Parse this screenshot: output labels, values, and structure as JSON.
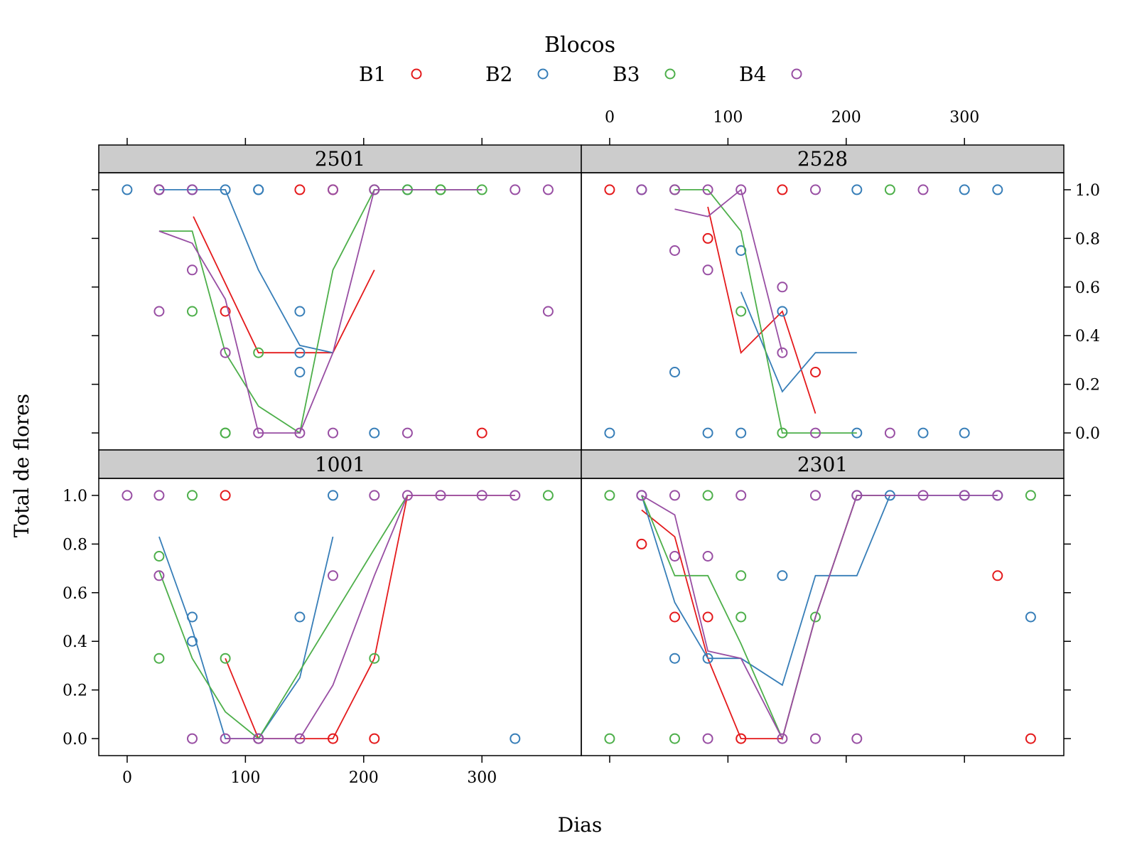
{
  "chart_data": {
    "type": "scatter",
    "legend": {
      "title": "Blocos",
      "placement": "top",
      "entries": [
        "B1",
        "B2",
        "B3",
        "B4"
      ]
    },
    "xlabel": "Dias",
    "ylabel": "Total de flores",
    "xlim": [
      -24,
      384
    ],
    "ylim": [
      -0.07,
      1.07
    ],
    "xticks": [
      0,
      100,
      200,
      300
    ],
    "yticks": [
      0.0,
      0.2,
      0.4,
      0.6,
      0.8,
      1.0
    ],
    "xtick_labels": [
      "0",
      "100",
      "200",
      "300"
    ],
    "ytick_labels": [
      "0.0",
      "0.2",
      "0.4",
      "0.6",
      "0.8",
      "1.0"
    ],
    "grid": false,
    "colors": {
      "B1": "#E41A1C",
      "B2": "#377EB8",
      "B3": "#4DAF4A",
      "B4": "#984EA3"
    },
    "panels": [
      {
        "strip": "2501",
        "points": {
          "B1": [
            [
              27,
              1
            ],
            [
              83,
              0.5
            ],
            [
              146,
              1
            ],
            [
              174,
              1
            ],
            [
              300,
              0
            ]
          ],
          "B2": [
            [
              0,
              1
            ],
            [
              27,
              1
            ],
            [
              55,
              1
            ],
            [
              83,
              1
            ],
            [
              111,
              1
            ],
            [
              111,
              1
            ],
            [
              146,
              0.5
            ],
            [
              146,
              0.33
            ],
            [
              146,
              0.25
            ],
            [
              209,
              0
            ],
            [
              237,
              1
            ]
          ],
          "B3": [
            [
              55,
              0.5
            ],
            [
              83,
              0
            ],
            [
              83,
              0
            ],
            [
              111,
              0.33
            ],
            [
              209,
              1
            ],
            [
              237,
              1
            ],
            [
              265,
              1
            ],
            [
              265,
              1
            ],
            [
              300,
              1
            ]
          ],
          "B4": [
            [
              27,
              1
            ],
            [
              27,
              0.5
            ],
            [
              55,
              1
            ],
            [
              55,
              0.67
            ],
            [
              83,
              0.33
            ],
            [
              111,
              0
            ],
            [
              146,
              0
            ],
            [
              174,
              1
            ],
            [
              174,
              0
            ],
            [
              209,
              1
            ],
            [
              237,
              0
            ],
            [
              328,
              1
            ],
            [
              356,
              1
            ],
            [
              356,
              0.5
            ]
          ]
        },
        "lines": {
          "B1": [
            [
              56,
              0.89
            ],
            [
              111,
              0.33
            ],
            [
              174,
              0.33
            ],
            [
              209,
              0.67
            ]
          ],
          "B2": [
            [
              27,
              1
            ],
            [
              83,
              1
            ],
            [
              111,
              0.67
            ],
            [
              146,
              0.36
            ],
            [
              174,
              0.33
            ]
          ],
          "B3": [
            [
              27,
              0.83
            ],
            [
              55,
              0.83
            ],
            [
              83,
              0.33
            ],
            [
              111,
              0.11
            ],
            [
              146,
              0
            ],
            [
              174,
              0.67
            ],
            [
              209,
              1
            ],
            [
              300,
              1
            ]
          ],
          "B4": [
            [
              27,
              0.83
            ],
            [
              55,
              0.78
            ],
            [
              83,
              0.55
            ],
            [
              111,
              0
            ],
            [
              146,
              0
            ],
            [
              174,
              0.33
            ],
            [
              209,
              1
            ],
            [
              300,
              1
            ]
          ]
        }
      },
      {
        "strip": "2528",
        "points": {
          "B1": [
            [
              0,
              1
            ],
            [
              83,
              0.8
            ],
            [
              146,
              1
            ],
            [
              174,
              0.25
            ]
          ],
          "B2": [
            [
              0,
              0
            ],
            [
              27,
              1
            ],
            [
              55,
              0.25
            ],
            [
              83,
              0
            ],
            [
              111,
              0.75
            ],
            [
              111,
              0
            ],
            [
              146,
              0.5
            ],
            [
              209,
              1
            ],
            [
              209,
              0
            ],
            [
              265,
              0
            ],
            [
              300,
              1
            ],
            [
              300,
              0
            ],
            [
              328,
              1
            ]
          ],
          "B3": [
            [
              55,
              1
            ],
            [
              111,
              0.5
            ],
            [
              146,
              0
            ],
            [
              237,
              1
            ]
          ],
          "B4": [
            [
              27,
              1
            ],
            [
              55,
              1
            ],
            [
              55,
              0.75
            ],
            [
              83,
              1
            ],
            [
              83,
              0.67
            ],
            [
              111,
              1
            ],
            [
              146,
              0.6
            ],
            [
              146,
              0.33
            ],
            [
              174,
              1
            ],
            [
              174,
              0
            ],
            [
              237,
              0
            ],
            [
              265,
              1
            ]
          ]
        },
        "lines": {
          "B1": [
            [
              83,
              0.93
            ],
            [
              111,
              0.33
            ],
            [
              146,
              0.5
            ],
            [
              174,
              0.08
            ]
          ],
          "B2": [
            [
              111,
              0.58
            ],
            [
              146,
              0.17
            ],
            [
              174,
              0.33
            ],
            [
              209,
              0.33
            ]
          ],
          "B3": [
            [
              55,
              1
            ],
            [
              83,
              1
            ],
            [
              111,
              0.83
            ],
            [
              146,
              0
            ],
            [
              209,
              0
            ]
          ],
          "B4": [
            [
              55,
              0.92
            ],
            [
              83,
              0.89
            ],
            [
              111,
              1
            ],
            [
              146,
              0.33
            ]
          ]
        }
      },
      {
        "strip": "1001",
        "points": {
          "B1": [
            [
              83,
              1
            ],
            [
              111,
              0
            ],
            [
              174,
              0
            ],
            [
              209,
              0
            ]
          ],
          "B2": [
            [
              55,
              0.5
            ],
            [
              55,
              0.4
            ],
            [
              111,
              0
            ],
            [
              146,
              0.5
            ],
            [
              174,
              1
            ],
            [
              328,
              0
            ]
          ],
          "B3": [
            [
              27,
              0.75
            ],
            [
              27,
              0.33
            ],
            [
              55,
              1
            ],
            [
              83,
              0.33
            ],
            [
              209,
              0.33
            ],
            [
              356,
              1
            ]
          ],
          "B4": [
            [
              0,
              1
            ],
            [
              27,
              1
            ],
            [
              27,
              0.67
            ],
            [
              55,
              0
            ],
            [
              83,
              0
            ],
            [
              111,
              0
            ],
            [
              146,
              0
            ],
            [
              174,
              0.67
            ],
            [
              209,
              1
            ],
            [
              237,
              1
            ],
            [
              265,
              1
            ],
            [
              300,
              1
            ],
            [
              328,
              1
            ]
          ]
        },
        "lines": {
          "B1": [
            [
              83,
              0.33
            ],
            [
              111,
              0
            ],
            [
              174,
              0
            ],
            [
              209,
              0.33
            ],
            [
              237,
              1
            ],
            [
              328,
              1
            ]
          ],
          "B2": [
            [
              27,
              0.83
            ],
            [
              55,
              0.45
            ],
            [
              83,
              0
            ],
            [
              111,
              0
            ],
            [
              146,
              0.25
            ],
            [
              174,
              0.83
            ]
          ],
          "B3": [
            [
              27,
              0.69
            ],
            [
              55,
              0.33
            ],
            [
              83,
              0.11
            ],
            [
              111,
              0
            ],
            [
              209,
              0.78
            ],
            [
              237,
              1
            ]
          ],
          "B4": [
            [
              83,
              0
            ],
            [
              146,
              0
            ],
            [
              174,
              0.22
            ],
            [
              209,
              0.67
            ],
            [
              237,
              1
            ],
            [
              328,
              1
            ]
          ]
        }
      },
      {
        "strip": "2301",
        "points": {
          "B1": [
            [
              27,
              0.8
            ],
            [
              55,
              0.5
            ],
            [
              83,
              0.5
            ],
            [
              111,
              0
            ],
            [
              328,
              0.67
            ],
            [
              356,
              0
            ]
          ],
          "B2": [
            [
              27,
              1
            ],
            [
              55,
              0.33
            ],
            [
              83,
              0.33
            ],
            [
              146,
              0.67
            ],
            [
              209,
              1
            ],
            [
              237,
              1
            ],
            [
              300,
              1
            ],
            [
              328,
              1
            ],
            [
              356,
              0.5
            ]
          ],
          "B3": [
            [
              0,
              1
            ],
            [
              0,
              0
            ],
            [
              55,
              0
            ],
            [
              83,
              1
            ],
            [
              111,
              0.67
            ],
            [
              111,
              0.5
            ],
            [
              174,
              0.5
            ],
            [
              356,
              1
            ]
          ],
          "B4": [
            [
              27,
              1
            ],
            [
              55,
              1
            ],
            [
              55,
              0.75
            ],
            [
              83,
              0.75
            ],
            [
              83,
              0
            ],
            [
              111,
              1
            ],
            [
              146,
              0
            ],
            [
              174,
              1
            ],
            [
              174,
              0
            ],
            [
              209,
              1
            ],
            [
              209,
              0
            ],
            [
              265,
              1
            ],
            [
              300,
              1
            ],
            [
              328,
              1
            ]
          ]
        },
        "lines": {
          "B1": [
            [
              27,
              0.94
            ],
            [
              55,
              0.83
            ],
            [
              83,
              0.33
            ],
            [
              111,
              0
            ],
            [
              146,
              0
            ],
            [
              174,
              0.5
            ],
            [
              209,
              1
            ],
            [
              237,
              1
            ]
          ],
          "B2": [
            [
              27,
              1
            ],
            [
              55,
              0.56
            ],
            [
              83,
              0.33
            ],
            [
              111,
              0.33
            ],
            [
              146,
              0.22
            ],
            [
              174,
              0.67
            ],
            [
              209,
              0.67
            ],
            [
              237,
              1
            ],
            [
              328,
              1
            ]
          ],
          "B3": [
            [
              27,
              1
            ],
            [
              55,
              0.67
            ],
            [
              83,
              0.67
            ],
            [
              111,
              0.39
            ],
            [
              146,
              0
            ],
            [
              174,
              0.5
            ],
            [
              209,
              1
            ],
            [
              237,
              1
            ]
          ],
          "B4": [
            [
              27,
              1
            ],
            [
              55,
              0.92
            ],
            [
              83,
              0.36
            ],
            [
              111,
              0.33
            ],
            [
              146,
              0
            ],
            [
              174,
              0.5
            ],
            [
              209,
              1
            ],
            [
              237,
              1
            ],
            [
              328,
              1
            ]
          ]
        }
      }
    ]
  }
}
